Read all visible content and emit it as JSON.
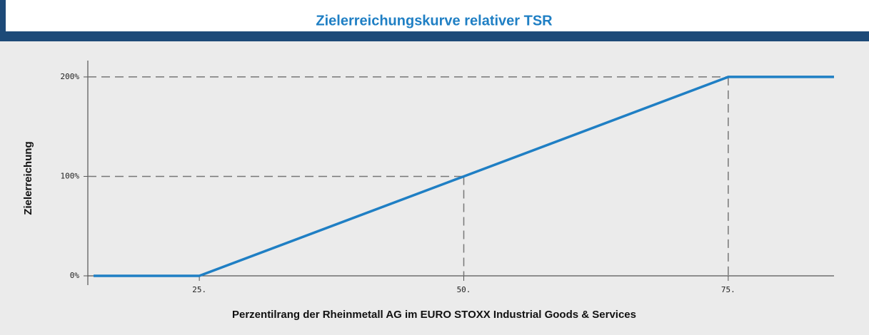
{
  "chart_data": {
    "type": "line",
    "title": "Zielerreichungskurve relativer TSR",
    "x_label": "Perzentilrang der Rheinmetall AG im EURO STOXX Industrial Goods & Services",
    "y_label": "Zielerreichung",
    "x": [
      15,
      25,
      50,
      75,
      85
    ],
    "series": [
      {
        "name": "Zielerreichung",
        "color": "#1f7fc4",
        "values": [
          0,
          0,
          100,
          200,
          200
        ]
      }
    ],
    "xlim": [
      15,
      85
    ],
    "xticks": [
      {
        "value": 25,
        "label": "25."
      },
      {
        "value": 50,
        "label": "50."
      },
      {
        "value": 75,
        "label": "75."
      }
    ],
    "ylim": [
      0,
      215
    ],
    "yticks": [
      {
        "value": 0,
        "label": "0%"
      },
      {
        "value": 100,
        "label": "100%"
      },
      {
        "value": 200,
        "label": "200%"
      }
    ],
    "legend": false
  }
}
